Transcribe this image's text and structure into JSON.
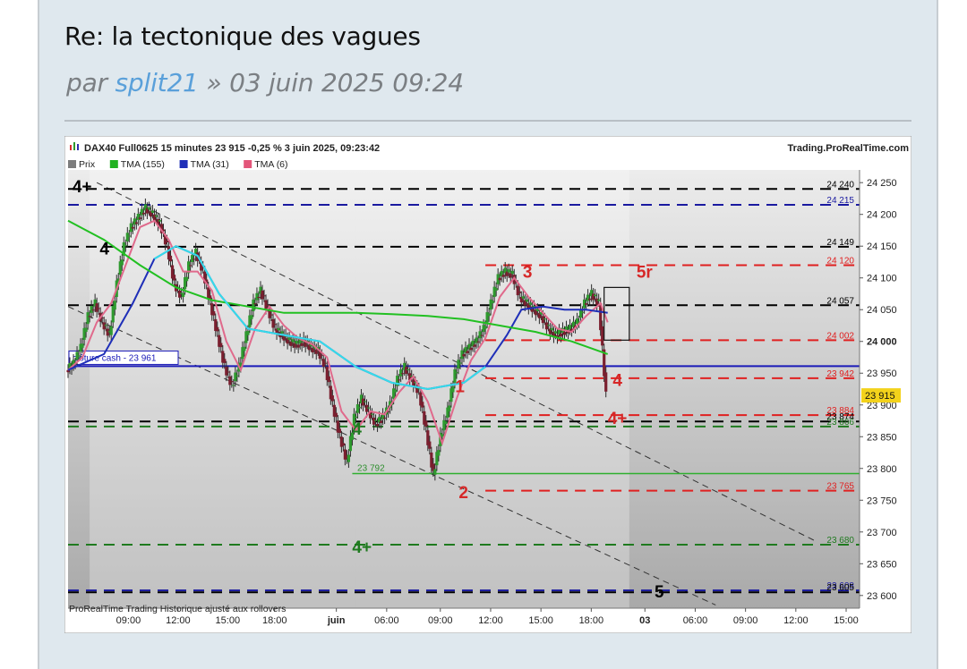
{
  "post": {
    "title": "Re: la tectonique des vagues",
    "byline_prefix": "par ",
    "author": "split21",
    "byline_suffix": " » 03 juin 2025 09:24"
  },
  "chart_data": {
    "type": "line",
    "header": "DAX40 Full0625 15 minutes 23 915 -0,25 % 3 juin 2025, 09:23:42",
    "brand": "Trading.ProRealTime.com",
    "legend": [
      {
        "label": "Prix",
        "color": "#7d7d7d"
      },
      {
        "label": "TMA (155)",
        "color": "#22b222"
      },
      {
        "label": "TMA (31)",
        "color": "#1f2fb8"
      },
      {
        "label": "TMA (6)",
        "color": "#e3567a"
      }
    ],
    "footer": "ProRealTime Trading  Historique ajusté aux rollovers",
    "x_ticks": [
      "09:00",
      "12:00",
      "15:00",
      "18:00",
      "juin",
      "06:00",
      "09:00",
      "12:00",
      "15:00",
      "18:00",
      "03",
      "06:00",
      "09:00",
      "12:00",
      "15:00"
    ],
    "ylim": [
      23580,
      24270
    ],
    "y_ticks": [
      "24 250",
      "24 200",
      "24 150",
      "24 100",
      "24 050",
      "24 000",
      "23 950",
      "23 900",
      "23 850",
      "23 800",
      "23 750",
      "23 700",
      "23 650",
      "23 600"
    ],
    "last_price": {
      "label": "23 915",
      "value": 23915
    },
    "cash_close": {
      "label": "clôture cash -  23 961",
      "value": 23961
    },
    "levels": [
      {
        "value": 24240,
        "label": "24 240",
        "color": "#000000",
        "side": "left"
      },
      {
        "value": 24215,
        "label": "24 215",
        "color": "#1a1aa0",
        "side": "left"
      },
      {
        "value": 24149,
        "label": "24 149",
        "color": "#000000",
        "side": "left"
      },
      {
        "value": 24120,
        "label": "24 120",
        "color": "#e02020",
        "side": "right"
      },
      {
        "value": 24057,
        "label": "24 057",
        "color": "#000000",
        "side": "left"
      },
      {
        "value": 24002,
        "label": "24 002",
        "color": "#e02020",
        "side": "right"
      },
      {
        "value": 23942,
        "label": "23 942",
        "color": "#e02020",
        "side": "right"
      },
      {
        "value": 23884,
        "label": "23 884",
        "color": "#e02020",
        "side": "right"
      },
      {
        "value": 23874,
        "label": "23 874",
        "color": "#000000",
        "side": "left"
      },
      {
        "value": 23866,
        "label": "23 866",
        "color": "#1f7a1f",
        "side": "left"
      },
      {
        "value": 23765,
        "label": "23 765",
        "color": "#e02020",
        "side": "right"
      },
      {
        "value": 23680,
        "label": "23 680",
        "color": "#1f7a1f",
        "side": "left"
      },
      {
        "value": 23608,
        "label": "23 608",
        "color": "#1a1aa0",
        "side": "left"
      },
      {
        "value": 23605,
        "label": "23 605",
        "color": "#000000",
        "side": "left"
      }
    ],
    "low_marker": {
      "label": "23 792",
      "value": 23792
    },
    "wave_labels": [
      {
        "text": "4+",
        "color": "#000000",
        "x": 0.6,
        "y": 24245
      },
      {
        "text": "4",
        "color": "#000000",
        "x": 4.4,
        "y": 24147
      },
      {
        "text": "1",
        "color": "#d62828",
        "x": 53.8,
        "y": 23930
      },
      {
        "text": "2",
        "color": "#d62828",
        "x": 54.3,
        "y": 23763
      },
      {
        "text": "3",
        "color": "#d62828",
        "x": 63.2,
        "y": 24110
      },
      {
        "text": "5r",
        "color": "#d62828",
        "x": 79.0,
        "y": 24110
      },
      {
        "text": "4",
        "color": "#d62828",
        "x": 75.7,
        "y": 23940
      },
      {
        "text": "4+",
        "color": "#d62828",
        "x": 75.0,
        "y": 23880
      },
      {
        "text": "4",
        "color": "#1f7a1f",
        "x": 39.5,
        "y": 23863
      },
      {
        "text": "4+",
        "color": "#1f7a1f",
        "x": 39.5,
        "y": 23677
      },
      {
        "text": "5",
        "color": "#000000",
        "x": 81.5,
        "y": 23607
      }
    ],
    "series": [
      {
        "name": "Prix",
        "values": [
          [
            0,
            23955
          ],
          [
            1,
            23965
          ],
          [
            2,
            23990
          ],
          [
            3,
            24040
          ],
          [
            4,
            24060
          ],
          [
            5,
            24030
          ],
          [
            6,
            24010
          ],
          [
            7,
            24090
          ],
          [
            8,
            24150
          ],
          [
            9,
            24180
          ],
          [
            10,
            24195
          ],
          [
            11,
            24210
          ],
          [
            12,
            24200
          ],
          [
            13,
            24185
          ],
          [
            14,
            24150
          ],
          [
            15,
            24090
          ],
          [
            16,
            24070
          ],
          [
            17,
            24120
          ],
          [
            18,
            24140
          ],
          [
            19,
            24110
          ],
          [
            20,
            24060
          ],
          [
            21,
            24010
          ],
          [
            22,
            23960
          ],
          [
            23,
            23930
          ],
          [
            24,
            23960
          ],
          [
            25,
            24010
          ],
          [
            26,
            24060
          ],
          [
            27,
            24080
          ],
          [
            28,
            24050
          ],
          [
            29,
            24020
          ],
          [
            30,
            24010
          ],
          [
            31,
            24000
          ],
          [
            32,
            23995
          ],
          [
            33,
            24000
          ],
          [
            34,
            23990
          ],
          [
            35,
            23985
          ],
          [
            36,
            23960
          ],
          [
            37,
            23900
          ],
          [
            38,
            23850
          ],
          [
            39,
            23810
          ],
          [
            40,
            23880
          ],
          [
            41,
            23910
          ],
          [
            42,
            23890
          ],
          [
            43,
            23870
          ],
          [
            44,
            23880
          ],
          [
            45,
            23900
          ],
          [
            46,
            23940
          ],
          [
            47,
            23960
          ],
          [
            48,
            23940
          ],
          [
            49,
            23920
          ],
          [
            50,
            23860
          ],
          [
            51,
            23790
          ],
          [
            52,
            23850
          ],
          [
            53,
            23890
          ],
          [
            54,
            23950
          ],
          [
            55,
            23980
          ],
          [
            56,
            23990
          ],
          [
            57,
            24000
          ],
          [
            58,
            24020
          ],
          [
            59,
            24060
          ],
          [
            60,
            24100
          ],
          [
            61,
            24110
          ],
          [
            62,
            24105
          ],
          [
            63,
            24070
          ],
          [
            64,
            24060
          ],
          [
            65,
            24050
          ],
          [
            66,
            24040
          ],
          [
            67,
            24020
          ],
          [
            68,
            24010
          ],
          [
            69,
            24015
          ],
          [
            70,
            24020
          ],
          [
            71,
            24030
          ],
          [
            72,
            24060
          ],
          [
            73,
            24075
          ],
          [
            74,
            24060
          ],
          [
            75,
            23915
          ]
        ]
      },
      {
        "name": "TMA (6)",
        "values": [
          [
            0,
            23955
          ],
          [
            2,
            23975
          ],
          [
            4,
            24030
          ],
          [
            6,
            24060
          ],
          [
            8,
            24120
          ],
          [
            10,
            24180
          ],
          [
            12,
            24190
          ],
          [
            14,
            24160
          ],
          [
            16,
            24110
          ],
          [
            18,
            24110
          ],
          [
            20,
            24080
          ],
          [
            22,
            24000
          ],
          [
            24,
            23955
          ],
          [
            26,
            24020
          ],
          [
            28,
            24055
          ],
          [
            30,
            24025
          ],
          [
            32,
            24005
          ],
          [
            34,
            23995
          ],
          [
            36,
            23975
          ],
          [
            38,
            23890
          ],
          [
            40,
            23860
          ],
          [
            42,
            23890
          ],
          [
            44,
            23885
          ],
          [
            46,
            23920
          ],
          [
            48,
            23945
          ],
          [
            50,
            23905
          ],
          [
            52,
            23840
          ],
          [
            54,
            23910
          ],
          [
            56,
            23970
          ],
          [
            58,
            24005
          ],
          [
            60,
            24070
          ],
          [
            62,
            24100
          ],
          [
            64,
            24070
          ],
          [
            66,
            24045
          ],
          [
            68,
            24020
          ],
          [
            70,
            24015
          ],
          [
            72,
            24040
          ],
          [
            74,
            24060
          ],
          [
            75,
            24030
          ]
        ]
      },
      {
        "name": "TMA (31)",
        "values": [
          [
            0,
            23955
          ],
          [
            5,
            23980
          ],
          [
            9,
            24060
          ],
          [
            12,
            24130
          ],
          [
            15,
            24150
          ],
          [
            18,
            24135
          ],
          [
            21,
            24075
          ],
          [
            25,
            24020
          ],
          [
            30,
            24010
          ],
          [
            35,
            24000
          ],
          [
            40,
            23960
          ],
          [
            45,
            23935
          ],
          [
            50,
            23925
          ],
          [
            55,
            23935
          ],
          [
            58,
            23960
          ],
          [
            61,
            24010
          ],
          [
            63,
            24050
          ],
          [
            66,
            24055
          ],
          [
            69,
            24050
          ],
          [
            72,
            24050
          ],
          [
            75,
            24045
          ]
        ]
      },
      {
        "name": "TMA (155)",
        "values": [
          [
            0,
            24190
          ],
          [
            5,
            24160
          ],
          [
            10,
            24120
          ],
          [
            15,
            24085
          ],
          [
            20,
            24065
          ],
          [
            25,
            24055
          ],
          [
            30,
            24045
          ],
          [
            35,
            24045
          ],
          [
            40,
            24045
          ],
          [
            45,
            24043
          ],
          [
            50,
            24040
          ],
          [
            55,
            24035
          ],
          [
            60,
            24025
          ],
          [
            65,
            24015
          ],
          [
            70,
            24000
          ],
          [
            75,
            23980
          ]
        ]
      }
    ]
  }
}
